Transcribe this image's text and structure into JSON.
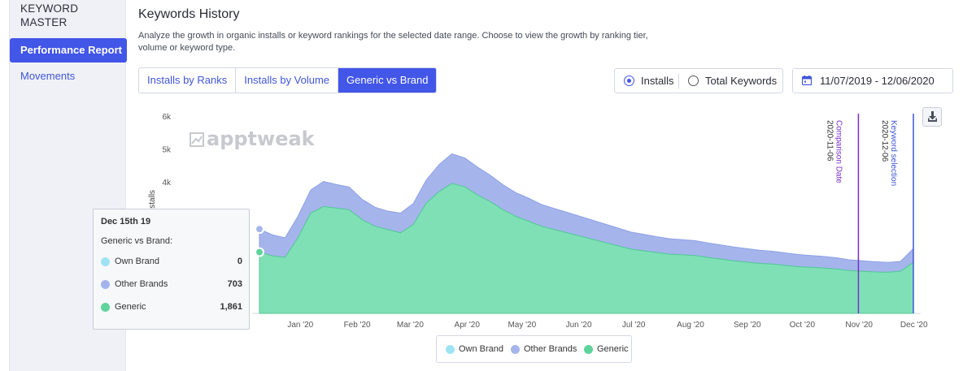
{
  "sidebar": {
    "brand": "KEYWORD MASTER",
    "items": [
      {
        "label": "Performance Report",
        "active": true
      },
      {
        "label": "Movements",
        "active": false
      }
    ]
  },
  "header": {
    "title": "Keywords History",
    "description": "Analyze the growth in organic installs or keyword rankings for the selected date range. Choose to view the growth by ranking tier, volume or keyword type."
  },
  "tabs": [
    {
      "label": "Installs by Ranks",
      "active": false
    },
    {
      "label": "Installs by Volume",
      "active": false
    },
    {
      "label": "Generic vs Brand",
      "active": true
    }
  ],
  "metric_toggle": {
    "options": [
      {
        "label": "Installs",
        "selected": true
      },
      {
        "label": "Total Keywords",
        "selected": false
      }
    ]
  },
  "date_range": {
    "label": "11/07/2019 - 12/06/2020",
    "icon": "calendar-icon"
  },
  "download": {
    "icon": "download-icon"
  },
  "chart_data": {
    "type": "area",
    "stacked": true,
    "title": "",
    "xlabel": "",
    "ylabel": "Installs",
    "ylim": [
      0,
      6000
    ],
    "y_ticks": [
      "6k",
      "5k",
      "4k"
    ],
    "x_ticks": [
      "Jan '20",
      "Feb '20",
      "Mar '20",
      "Apr '20",
      "May '20",
      "Jun '20",
      "Jul '20",
      "Aug '20",
      "Sep '20",
      "Oct '20",
      "Nov '20",
      "Dec '20"
    ],
    "watermark": "apptweak",
    "x": [
      "2019-12-15",
      "2019-12-22",
      "2019-12-29",
      "2020-01-05",
      "2020-01-12",
      "2020-01-19",
      "2020-01-26",
      "2020-02-02",
      "2020-02-09",
      "2020-02-16",
      "2020-02-23",
      "2020-03-01",
      "2020-03-08",
      "2020-03-15",
      "2020-03-22",
      "2020-03-29",
      "2020-04-05",
      "2020-04-12",
      "2020-04-19",
      "2020-04-26",
      "2020-05-03",
      "2020-05-10",
      "2020-05-17",
      "2020-05-24",
      "2020-05-31",
      "2020-06-07",
      "2020-06-14",
      "2020-06-21",
      "2020-06-28",
      "2020-07-05",
      "2020-07-12",
      "2020-07-19",
      "2020-07-26",
      "2020-08-02",
      "2020-08-09",
      "2020-08-16",
      "2020-08-23",
      "2020-08-30",
      "2020-09-06",
      "2020-09-13",
      "2020-09-20",
      "2020-09-27",
      "2020-10-04",
      "2020-10-11",
      "2020-10-18",
      "2020-10-25",
      "2020-11-01",
      "2020-11-08",
      "2020-11-15",
      "2020-11-22",
      "2020-11-29",
      "2020-12-06"
    ],
    "series": [
      {
        "name": "Own Brand",
        "color": "#9ee3f2",
        "values": [
          0,
          0,
          0,
          0,
          0,
          0,
          0,
          0,
          0,
          0,
          0,
          0,
          0,
          0,
          0,
          0,
          0,
          0,
          0,
          0,
          0,
          0,
          0,
          0,
          0,
          0,
          0,
          0,
          0,
          0,
          0,
          0,
          0,
          0,
          0,
          0,
          0,
          0,
          0,
          0,
          0,
          0,
          0,
          0,
          0,
          0,
          0,
          0,
          0,
          0,
          0,
          0
        ]
      },
      {
        "name": "Other Brands",
        "color": "#a5b5ec",
        "values": [
          703,
          640,
          600,
          650,
          700,
          760,
          720,
          690,
          620,
          580,
          560,
          600,
          640,
          700,
          820,
          900,
          880,
          850,
          800,
          760,
          720,
          700,
          660,
          640,
          620,
          600,
          580,
          560,
          540,
          520,
          500,
          480,
          470,
          460,
          450,
          440,
          430,
          420,
          410,
          400,
          390,
          380,
          370,
          360,
          350,
          340,
          330,
          320,
          310,
          300,
          300,
          420
        ]
      },
      {
        "name": "Generic",
        "color": "#7fe0b6",
        "values": [
          1861,
          1750,
          1700,
          2300,
          3050,
          3250,
          3200,
          3150,
          2850,
          2650,
          2550,
          2450,
          2700,
          3350,
          3700,
          3950,
          3850,
          3600,
          3400,
          3150,
          2950,
          2800,
          2650,
          2550,
          2450,
          2350,
          2250,
          2150,
          2050,
          1950,
          1900,
          1850,
          1800,
          1780,
          1760,
          1700,
          1650,
          1600,
          1560,
          1520,
          1500,
          1460,
          1420,
          1400,
          1380,
          1350,
          1300,
          1280,
          1260,
          1250,
          1280,
          1550
        ]
      }
    ],
    "markers": [
      {
        "label": "Comparison Date",
        "date": "2020-11-06",
        "color": "#7a2ec7"
      },
      {
        "label": "Keyword selection",
        "date": "2020-12-06",
        "color": "#3f56d9"
      }
    ]
  },
  "tooltip": {
    "date": "Dec 15th 19",
    "subtitle": "Generic vs Brand:",
    "rows": [
      {
        "name": "Own Brand",
        "value": "0",
        "color": "#9ee3f2"
      },
      {
        "name": "Other Brands",
        "value": "703",
        "color": "#a5b5ec"
      },
      {
        "name": "Generic",
        "value": "1,861",
        "color": "#5fd39c"
      }
    ]
  },
  "legend": [
    {
      "name": "Own Brand",
      "color": "#9ee3f2"
    },
    {
      "name": "Other Brands",
      "color": "#a5b5ec"
    },
    {
      "name": "Generic",
      "color": "#5fd39c"
    }
  ]
}
